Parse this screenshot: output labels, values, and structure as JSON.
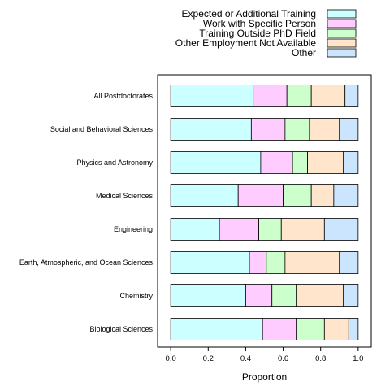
{
  "chart_data": {
    "type": "bar",
    "orientation": "horizontal",
    "stacked": true,
    "xlabel": "Proportion",
    "ylabel": "",
    "xlim": [
      -0.07,
      1.07
    ],
    "xticks": [
      0.0,
      0.2,
      0.4,
      0.6,
      0.8,
      1.0
    ],
    "xtick_labels": [
      "0.0",
      "0.2",
      "0.4",
      "0.6",
      "0.8",
      "1.0"
    ],
    "legend_position": "top-right",
    "categories": [
      "All Postdoctorates",
      "Social and Behavioral Sciences",
      "Physics and Astronomy",
      "Medical Sciences",
      "Engineering",
      "Earth, Atmospheric, and Ocean Sciences",
      "Chemistry",
      "Biological Sciences"
    ],
    "series": [
      {
        "name": "Expected or Additional Training",
        "color": "#ccffff",
        "values": [
          0.44,
          0.43,
          0.48,
          0.36,
          0.26,
          0.42,
          0.4,
          0.49
        ]
      },
      {
        "name": "Work with Specific Person",
        "color": "#ffccff",
        "values": [
          0.18,
          0.18,
          0.17,
          0.24,
          0.21,
          0.09,
          0.14,
          0.18
        ]
      },
      {
        "name": "Training Outside PhD Field",
        "color": "#ccffcc",
        "values": [
          0.13,
          0.13,
          0.08,
          0.15,
          0.12,
          0.1,
          0.13,
          0.15
        ]
      },
      {
        "name": "Other Employment Not Available",
        "color": "#ffe5cc",
        "values": [
          0.18,
          0.16,
          0.19,
          0.12,
          0.23,
          0.29,
          0.25,
          0.13
        ]
      },
      {
        "name": "Other",
        "color": "#cce5ff",
        "values": [
          0.07,
          0.1,
          0.08,
          0.13,
          0.18,
          0.1,
          0.08,
          0.05
        ]
      }
    ]
  }
}
